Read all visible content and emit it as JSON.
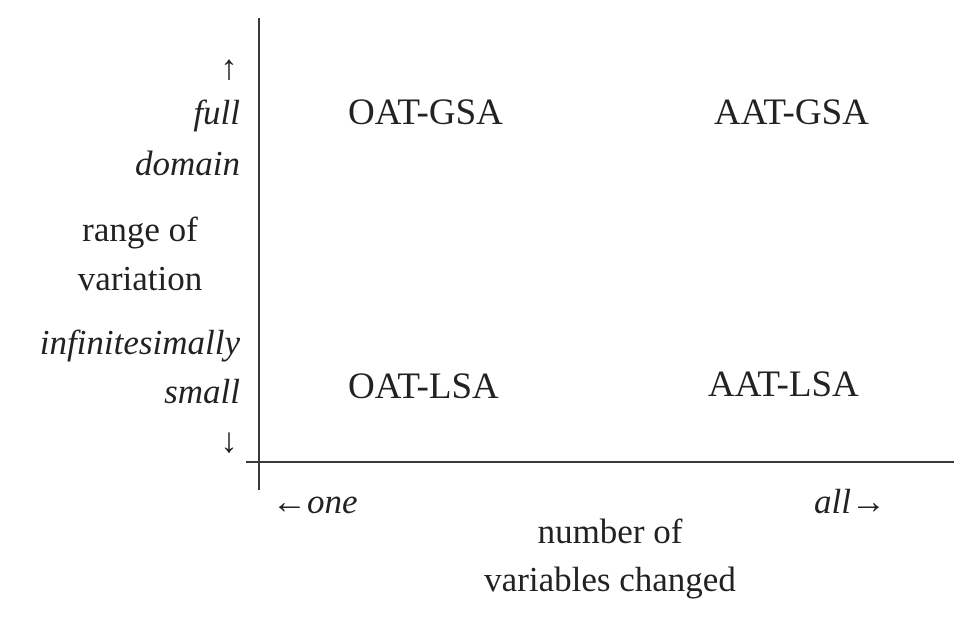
{
  "y_axis": {
    "arrow_up": "↑",
    "top_label_line1": "full",
    "top_label_line2": "domain",
    "title_line1": "range of",
    "title_line2": "variation",
    "bottom_label_line1": "infinitesimally",
    "bottom_label_line2": "small",
    "arrow_down": "↓"
  },
  "x_axis": {
    "left_label": "←one",
    "right_label": "all→",
    "title_line1": "number of",
    "title_line2": "variables changed"
  },
  "quadrants": {
    "top_left": "OAT-GSA",
    "top_right": "AAT-GSA",
    "bottom_left": "OAT-LSA",
    "bottom_right": "AAT-LSA"
  }
}
